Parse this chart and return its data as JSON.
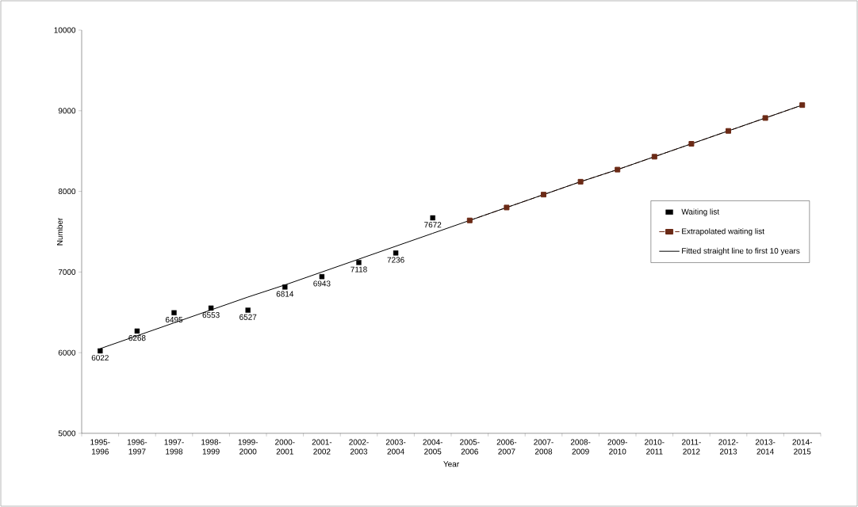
{
  "chart_data": {
    "type": "line",
    "xlabel": "Year",
    "ylabel": "Number",
    "categories": [
      "1995-1996",
      "1996-1997",
      "1997-1998",
      "1998-1999",
      "1999-2000",
      "2000-2001",
      "2001-2002",
      "2002-2003",
      "2003-2004",
      "2004-2005",
      "2005-2006",
      "2006-2007",
      "2007-2008",
      "2008-2009",
      "2009-2010",
      "2010-2011",
      "2011-2012",
      "2012-2013",
      "2013-2014",
      "2014-2015"
    ],
    "series": [
      {
        "name": "Waiting list",
        "type": "scatter",
        "color": "#000000",
        "marker": "square",
        "values": [
          6022,
          6268,
          6495,
          6553,
          6527,
          6814,
          6943,
          7118,
          7236,
          7672,
          null,
          null,
          null,
          null,
          null,
          null,
          null,
          null,
          null,
          null
        ],
        "value_labels": [
          "6022",
          "6268",
          "6495",
          "6553",
          "6527",
          "6814",
          "6943",
          "7118",
          "7236",
          "7672",
          null,
          null,
          null,
          null,
          null,
          null,
          null,
          null,
          null,
          null
        ]
      },
      {
        "name": "Extrapolated waiting list",
        "color": "#6b2a16",
        "marker": "square",
        "line_style": "dashed",
        "values": [
          null,
          null,
          null,
          null,
          null,
          null,
          null,
          null,
          null,
          null,
          7640,
          7800,
          7960,
          8120,
          8270,
          8430,
          8590,
          8750,
          8910,
          9070
        ]
      },
      {
        "name": "Fitted straight line to first 10 years",
        "color": "#000000",
        "marker": "none",
        "line_style": "solid",
        "values": [
          6050,
          6210,
          6370,
          6530,
          6690,
          6840,
          7000,
          7160,
          7320,
          7480,
          7640,
          7800,
          7960,
          8120,
          8270,
          8430,
          8590,
          8750,
          8910,
          9070
        ]
      }
    ],
    "ylim": [
      5000,
      10000
    ],
    "yticks": [
      5000,
      6000,
      7000,
      8000,
      9000,
      10000
    ],
    "grid": false,
    "legend": "right"
  }
}
